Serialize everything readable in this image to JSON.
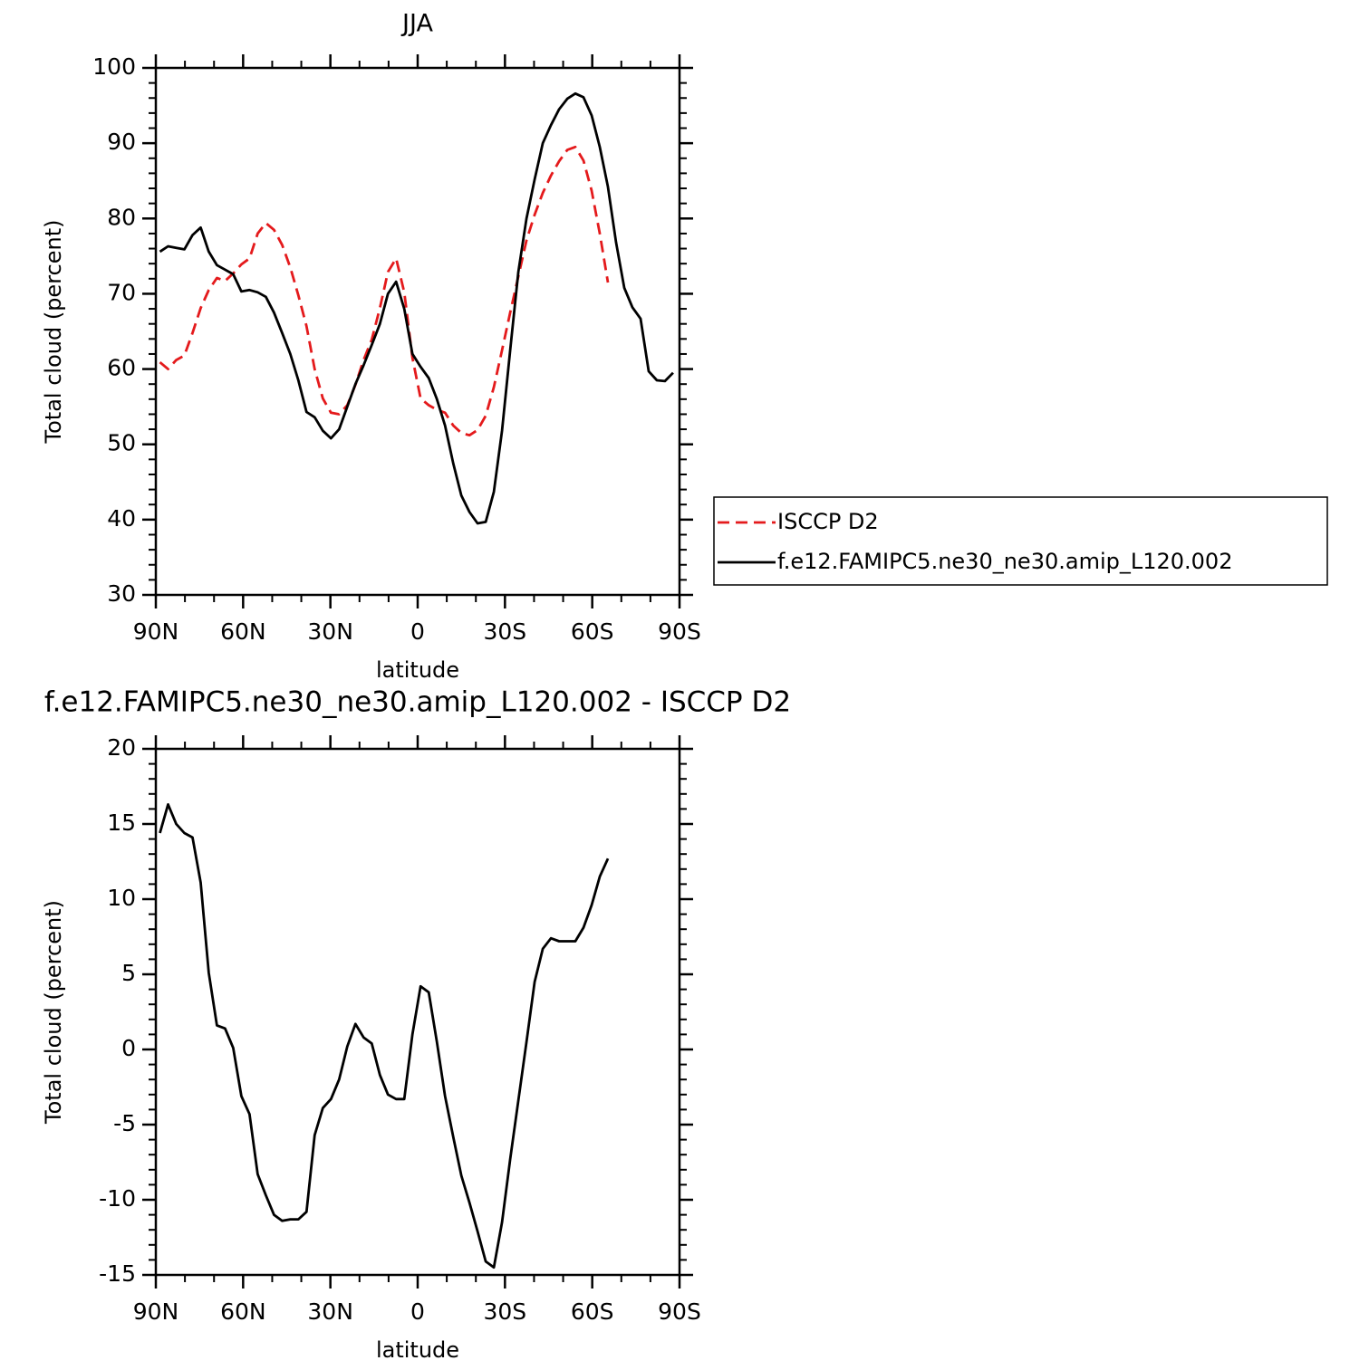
{
  "chart_data": [
    {
      "type": "line",
      "title": "JJA",
      "xlabel": "latitude",
      "ylabel": "Total cloud (percent)",
      "x": [
        88.6,
        85.8,
        83.0,
        80.2,
        77.4,
        74.6,
        71.8,
        69.0,
        66.2,
        63.4,
        60.6,
        57.8,
        55.0,
        52.2,
        49.4,
        46.6,
        43.8,
        41.0,
        38.2,
        35.4,
        32.6,
        29.8,
        27.0,
        24.2,
        21.4,
        18.6,
        15.8,
        13.0,
        10.2,
        7.4,
        4.6,
        1.8,
        -1.0,
        -3.8,
        -6.6,
        -9.4,
        -12.2,
        -15.0,
        -17.8,
        -20.6,
        -23.4,
        -26.2,
        -29.0,
        -31.8,
        -34.6,
        -37.4,
        -40.2,
        -43.0,
        -45.8,
        -48.6,
        -51.4,
        -54.2,
        -57.0,
        -59.8,
        -62.6,
        -65.4,
        -68.2,
        -71.0,
        -73.8,
        -76.6,
        -79.4,
        -82.2,
        -85.0,
        -87.8
      ],
      "series": [
        {
          "name": "ISCCP D2",
          "color": "#e41a1c",
          "line_style": "dashed",
          "values": [
            60.9,
            60.0,
            61.2,
            61.8,
            64.8,
            68.1,
            70.5,
            72.1,
            71.7,
            72.7,
            73.9,
            74.7,
            78.0,
            79.4,
            78.5,
            76.5,
            73.5,
            69.8,
            65.7,
            60.0,
            56.1,
            54.2,
            54.0,
            55.2,
            57.9,
            61.2,
            63.9,
            68.1,
            72.9,
            74.7,
            70.2,
            61.5,
            56.1,
            55.2,
            54.6,
            54.2,
            52.5,
            51.5,
            51.2,
            51.9,
            53.8,
            57.6,
            62.5,
            67.5,
            72.3,
            77.1,
            80.5,
            83.4,
            85.7,
            87.6,
            89.1,
            89.5,
            87.7,
            83.7,
            78.0,
            71.5,
            null,
            null,
            null,
            null,
            null,
            null,
            null,
            null
          ]
        },
        {
          "name": "f.e12.FAMIPC5.ne30_ne30.amip_L120.002",
          "color": "#000000",
          "line_style": "solid",
          "values": [
            75.6,
            76.3,
            76.1,
            75.9,
            77.8,
            78.8,
            75.6,
            73.8,
            73.2,
            72.6,
            70.3,
            70.5,
            70.2,
            69.6,
            67.5,
            64.8,
            62.0,
            58.5,
            54.3,
            53.6,
            51.8,
            50.8,
            52.0,
            55.0,
            58.0,
            60.5,
            63.2,
            66.0,
            70.0,
            71.6,
            68.0,
            62.0,
            60.3,
            58.8,
            56.0,
            52.5,
            47.5,
            43.2,
            41.0,
            39.5,
            39.7,
            43.7,
            51.8,
            62.5,
            72.9,
            80.0,
            85.2,
            90.0,
            92.4,
            94.5,
            95.9,
            96.6,
            96.1,
            93.7,
            89.5,
            84.2,
            76.8,
            70.8,
            68.2,
            66.7,
            59.7,
            58.5,
            58.4,
            59.5
          ]
        }
      ],
      "xlim": [
        90,
        -90
      ],
      "xticks": [
        {
          "value": 90,
          "label": "90N"
        },
        {
          "value": 60,
          "label": "60N"
        },
        {
          "value": 30,
          "label": "30N"
        },
        0,
        {
          "value": -30,
          "label": "30S"
        },
        {
          "value": -60,
          "label": "60S"
        },
        {
          "value": -90,
          "label": "90S"
        }
      ],
      "xminorticks": [
        80,
        70,
        50,
        40,
        20,
        10,
        -10,
        -20,
        -40,
        -50,
        -70,
        -80
      ],
      "ylim": [
        30,
        100
      ],
      "yticks": [
        30,
        40,
        50,
        60,
        70,
        80,
        90,
        100
      ],
      "yminorticks": [
        32,
        34,
        36,
        38,
        42,
        44,
        46,
        48,
        52,
        54,
        56,
        58,
        62,
        64,
        66,
        68,
        72,
        74,
        76,
        78,
        82,
        84,
        86,
        88,
        92,
        94,
        96,
        98
      ],
      "legend": "right"
    },
    {
      "type": "line",
      "title": "f.e12.FAMIPC5.ne30_ne30.amip_L120.002 - ISCCP D2",
      "xlabel": "latitude",
      "ylabel": "Total cloud (percent)",
      "x": [
        88.6,
        85.8,
        83.0,
        80.2,
        77.4,
        74.6,
        71.8,
        69.0,
        66.2,
        63.4,
        60.6,
        57.8,
        55.0,
        52.2,
        49.4,
        46.6,
        43.8,
        41.0,
        38.2,
        35.4,
        32.6,
        29.8,
        27.0,
        24.2,
        21.4,
        18.6,
        15.8,
        13.0,
        10.2,
        7.4,
        4.6,
        1.8,
        -1.0,
        -3.8,
        -6.6,
        -9.4,
        -12.2,
        -15.0,
        -17.8,
        -20.6,
        -23.4,
        -26.2,
        -29.0,
        -31.8,
        -34.6,
        -37.4,
        -40.2,
        -43.0,
        -45.8,
        -48.6,
        -51.4,
        -54.2,
        -57.0,
        -59.8,
        -62.6,
        -65.4
      ],
      "series": [
        {
          "color": "#000000",
          "line_style": "solid",
          "values": [
            14.4,
            16.3,
            15.0,
            14.4,
            14.1,
            11.1,
            5.1,
            1.6,
            1.4,
            0.1,
            -3.1,
            -4.3,
            -8.3,
            -9.7,
            -11.0,
            -11.4,
            -11.3,
            -11.3,
            -10.8,
            -5.7,
            -3.9,
            -3.3,
            -2.0,
            0.2,
            1.7,
            0.8,
            0.4,
            -1.7,
            -3.0,
            -3.3,
            -3.3,
            1.0,
            4.2,
            3.8,
            0.5,
            -3.1,
            -5.8,
            -8.4,
            -10.2,
            -12.1,
            -14.1,
            -14.5,
            -11.5,
            -7.3,
            -3.4,
            0.5,
            4.5,
            6.7,
            7.4,
            7.2,
            7.2,
            7.2,
            8.1,
            9.6,
            11.5,
            12.7
          ]
        }
      ],
      "xlim": [
        90,
        -90
      ],
      "xticks": [
        {
          "value": 90,
          "label": "90N"
        },
        {
          "value": 60,
          "label": "60N"
        },
        {
          "value": 30,
          "label": "30N"
        },
        0,
        {
          "value": -30,
          "label": "30S"
        },
        {
          "value": -60,
          "label": "60S"
        },
        {
          "value": -90,
          "label": "90S"
        }
      ],
      "xminorticks": [
        80,
        70,
        50,
        40,
        20,
        10,
        -10,
        -20,
        -40,
        -50,
        -70,
        -80
      ],
      "ylim": [
        -15,
        20
      ],
      "yticks": [
        -15,
        -10,
        -5,
        0,
        5,
        10,
        15,
        20
      ],
      "yminorticks": [
        -14,
        -13,
        -12,
        -11,
        -9,
        -8,
        -7,
        -6,
        -4,
        -3,
        -2,
        -1,
        1,
        2,
        3,
        4,
        6,
        7,
        8,
        9,
        11,
        12,
        13,
        14,
        16,
        17,
        18,
        19
      ]
    }
  ]
}
